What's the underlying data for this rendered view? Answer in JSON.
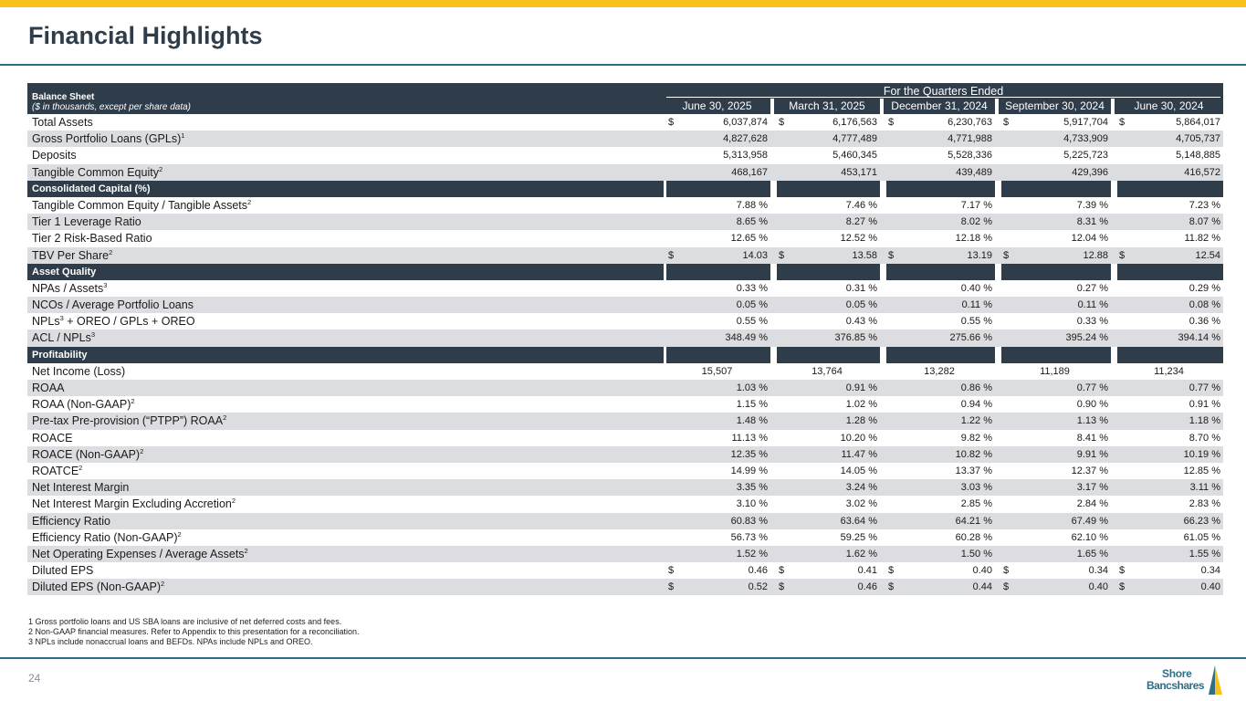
{
  "page": {
    "title": "Financial Highlights",
    "page_number": "24"
  },
  "header": {
    "left_title": "Balance Sheet",
    "left_subtitle": "($ in thousands, except per share data)",
    "span_title": "For the Quarters Ended",
    "columns": [
      "June 30, 2025",
      "March 31, 2025",
      "December 31, 2024",
      "September 30, 2024",
      "June 30, 2024"
    ]
  },
  "sections": [
    {
      "title": "",
      "rows": [
        {
          "label": "Total Assets",
          "sup": "",
          "dollar": true,
          "values": [
            "6,037,874",
            "6,176,563",
            "6,230,763",
            "5,917,704",
            "5,864,017"
          ]
        },
        {
          "label": "Gross Portfolio Loans (GPLs)",
          "sup": "1",
          "dollar": false,
          "values": [
            "4,827,628",
            "4,777,489",
            "4,771,988",
            "4,733,909",
            "4,705,737"
          ]
        },
        {
          "label": "Deposits",
          "sup": "",
          "dollar": false,
          "values": [
            "5,313,958",
            "5,460,345",
            "5,528,336",
            "5,225,723",
            "5,148,885"
          ]
        },
        {
          "label": "Tangible Common Equity",
          "sup": "2",
          "dollar": false,
          "values": [
            "468,167",
            "453,171",
            "439,489",
            "429,396",
            "416,572"
          ]
        }
      ]
    },
    {
      "title": "Consolidated Capital (%)",
      "rows": [
        {
          "label": "Tangible Common Equity / Tangible Assets",
          "sup": "2",
          "dollar": false,
          "values": [
            "7.88 %",
            "7.46 %",
            "7.17 %",
            "7.39 %",
            "7.23 %"
          ]
        },
        {
          "label": "Tier 1 Leverage Ratio",
          "sup": "",
          "dollar": false,
          "values": [
            "8.65 %",
            "8.27 %",
            "8.02 %",
            "8.31 %",
            "8.07 %"
          ]
        },
        {
          "label": "Tier 2 Risk-Based Ratio",
          "sup": "",
          "dollar": false,
          "values": [
            "12.65 %",
            "12.52 %",
            "12.18 %",
            "12.04 %",
            "11.82 %"
          ]
        },
        {
          "label": "TBV Per Share",
          "sup": "2",
          "dollar": true,
          "values": [
            "14.03",
            "13.58",
            "13.19",
            "12.88",
            "12.54"
          ]
        }
      ]
    },
    {
      "title": "Asset Quality",
      "rows": [
        {
          "label": "NPAs / Assets",
          "sup": "3",
          "dollar": false,
          "values": [
            "0.33 %",
            "0.31 %",
            "0.40 %",
            "0.27 %",
            "0.29 %"
          ]
        },
        {
          "label": "NCOs  / Average Portfolio Loans",
          "sup": "",
          "dollar": false,
          "values": [
            "0.05 %",
            "0.05 %",
            "0.11 %",
            "0.11 %",
            "0.08 %"
          ]
        },
        {
          "label": "NPLs",
          "sup": "3",
          "suffix": " + OREO / GPLs + OREO",
          "dollar": false,
          "values": [
            "0.55 %",
            "0.43 %",
            "0.55 %",
            "0.33 %",
            "0.36 %"
          ]
        },
        {
          "label": "ACL / NPLs",
          "sup": "3",
          "dollar": false,
          "values": [
            "348.49 %",
            "376.85 %",
            "275.66 %",
            "395.24 %",
            "394.14 %"
          ]
        }
      ]
    },
    {
      "title": "Profitability",
      "rows": [
        {
          "label": "Net Income (Loss)",
          "sup": "",
          "dollar": false,
          "center": true,
          "values": [
            "15,507",
            "13,764",
            "13,282",
            "11,189",
            "11,234"
          ]
        },
        {
          "label": "ROAA",
          "sup": "",
          "dollar": false,
          "values": [
            "1.03 %",
            "0.91 %",
            "0.86 %",
            "0.77 %",
            "0.77 %"
          ]
        },
        {
          "label": "ROAA (Non-GAAP)",
          "sup": "2",
          "dollar": false,
          "values": [
            "1.15 %",
            "1.02 %",
            "0.94 %",
            "0.90 %",
            "0.91 %"
          ]
        },
        {
          "label": "Pre-tax Pre-provision (“PTPP”) ROAA",
          "sup": "2",
          "dollar": false,
          "values": [
            "1.48 %",
            "1.28 %",
            "1.22 %",
            "1.13 %",
            "1.18 %"
          ]
        },
        {
          "label": "ROACE",
          "sup": "",
          "dollar": false,
          "values": [
            "11.13 %",
            "10.20 %",
            "9.82 %",
            "8.41 %",
            "8.70 %"
          ]
        },
        {
          "label": "ROACE (Non-GAAP)",
          "sup": "2",
          "dollar": false,
          "values": [
            "12.35 %",
            "11.47 %",
            "10.82 %",
            "9.91 %",
            "10.19 %"
          ]
        },
        {
          "label": "ROATCE",
          "sup": "2",
          "dollar": false,
          "values": [
            "14.99 %",
            "14.05 %",
            "13.37 %",
            "12.37 %",
            "12.85 %"
          ]
        },
        {
          "label": "Net Interest Margin",
          "sup": "",
          "dollar": false,
          "values": [
            "3.35 %",
            "3.24 %",
            "3.03 %",
            "3.17 %",
            "3.11 %"
          ]
        },
        {
          "label": "Net Interest Margin Excluding Accretion",
          "sup": "2",
          "dollar": false,
          "values": [
            "3.10 %",
            "3.02 %",
            "2.85 %",
            "2.84 %",
            "2.83 %"
          ]
        },
        {
          "label": "Efficiency Ratio",
          "sup": "",
          "dollar": false,
          "values": [
            "60.83 %",
            "63.64 %",
            "64.21 %",
            "67.49 %",
            "66.23 %"
          ]
        },
        {
          "label": "Efficiency Ratio (Non-GAAP)",
          "sup": "2",
          "dollar": false,
          "values": [
            "56.73 %",
            "59.25 %",
            "60.28 %",
            "62.10 %",
            "61.05 %"
          ]
        },
        {
          "label": "Net Operating Expenses / Average Assets",
          "sup": "2",
          "dollar": false,
          "values": [
            "1.52 %",
            "1.62 %",
            "1.50 %",
            "1.65 %",
            "1.55 %"
          ]
        },
        {
          "label": "Diluted EPS",
          "sup": "",
          "dollar": true,
          "values": [
            "0.46",
            "0.41",
            "0.40",
            "0.34",
            "0.34"
          ]
        },
        {
          "label": "Diluted EPS (Non-GAAP)",
          "sup": "2",
          "dollar": true,
          "values": [
            "0.52",
            "0.46",
            "0.44",
            "0.40",
            "0.40"
          ]
        }
      ]
    }
  ],
  "dollar_sign": "$",
  "footnotes": [
    "1 Gross portfolio loans and US SBA loans are inclusive of net deferred costs and fees.",
    "2 Non-GAAP financial measures. Refer to Appendix to this presentation for a reconciliation.",
    "3 NPLs include nonaccrual loans and BEFDs. NPAs include NPLs and OREO."
  ],
  "logo": {
    "line1": "Shore",
    "line2": "Bancshares"
  },
  "colors": {
    "accent": "#f8c21c",
    "navy": "#2f3d4a",
    "teal": "#2f6e86",
    "shade": "#dcdde0"
  }
}
